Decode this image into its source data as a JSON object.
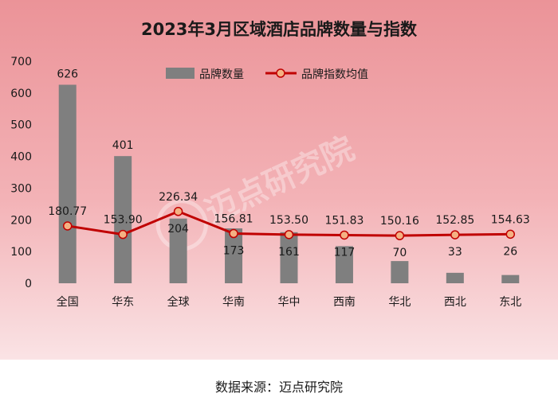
{
  "chart_data": {
    "type": "bar+line",
    "title": "2023年3月区域酒店品牌数量与指数",
    "categories": [
      "全国",
      "华东",
      "全球",
      "华南",
      "华中",
      "西南",
      "华北",
      "西北",
      "东北"
    ],
    "series": [
      {
        "name": "品牌数量",
        "type": "bar",
        "values": [
          626,
          401,
          204,
          173,
          161,
          117,
          70,
          33,
          26
        ],
        "value_labels": [
          "626",
          "401",
          "204",
          "173",
          "161",
          "117",
          "70",
          "33",
          "26"
        ]
      },
      {
        "name": "品牌指数均值",
        "type": "line",
        "values": [
          180.77,
          153.9,
          226.34,
          156.81,
          153.5,
          151.83,
          150.16,
          152.85,
          154.63
        ],
        "value_labels": [
          "180.77",
          "153.90",
          "226.34",
          "156.81",
          "153.50",
          "151.83",
          "150.16",
          "152.85",
          "154.63"
        ]
      }
    ],
    "yticks": [
      "0",
      "100",
      "200",
      "300",
      "400",
      "500",
      "600",
      "700"
    ],
    "ylim": [
      0,
      700
    ],
    "legend_position": "top",
    "grid": false,
    "colors": {
      "bar": "#7f7f7f",
      "line": "#c00000",
      "marker_fill": "#f4b183",
      "background_top": "#ec9aa0",
      "background_bottom": "#fbe4e6"
    }
  },
  "watermark": "迈点研究院",
  "source": "数据来源：迈点研究院"
}
